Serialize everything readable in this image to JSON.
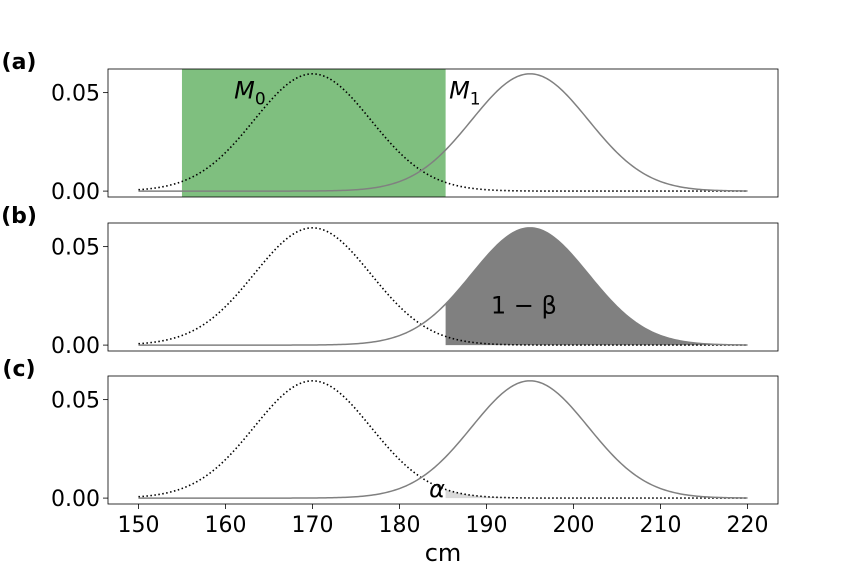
{
  "colors": {
    "null_curve": "#000000",
    "alt_curve": "#808080",
    "acceptance_fill": "#7fbf7f",
    "power_fill": "#808080",
    "alpha_fill": "#d9d9d9"
  },
  "chart_data": [
    {
      "type": "line",
      "panel_label": "(a)",
      "series": [
        {
          "name": "M0",
          "mean": 170,
          "sd": 6.7,
          "style": "dotted",
          "color": "#000000"
        },
        {
          "name": "M1",
          "mean": 195,
          "sd": 6.7,
          "style": "solid",
          "color": "#808080"
        }
      ],
      "x_range": [
        150,
        220
      ],
      "xlim": [
        146.5,
        223.5
      ],
      "ylim": [
        -0.003,
        0.062
      ],
      "yticks": [
        0.0,
        0.05
      ],
      "ytick_labels": [
        "0.00",
        "0.05"
      ],
      "shaded_region": {
        "x": [
          155,
          185.3
        ],
        "color": "#7fbf7f",
        "meaning": "acceptance region"
      },
      "annotations": [
        {
          "base": "M",
          "sub": "0",
          "x": 161,
          "y": 0.049
        },
        {
          "base": "M",
          "sub": "1",
          "x": 185.7,
          "y": 0.049
        }
      ]
    },
    {
      "type": "line",
      "panel_label": "(b)",
      "series": [
        {
          "name": "M0",
          "mean": 170,
          "sd": 6.7,
          "style": "dotted",
          "color": "#000000"
        },
        {
          "name": "M1",
          "mean": 195,
          "sd": 6.7,
          "style": "solid",
          "color": "#808080"
        }
      ],
      "x_range": [
        150,
        220
      ],
      "xlim": [
        146.5,
        223.5
      ],
      "ylim": [
        -0.003,
        0.062
      ],
      "yticks": [
        0.0,
        0.05
      ],
      "ytick_labels": [
        "0.00",
        "0.05"
      ],
      "shaded_under_curve": {
        "curve": "M1",
        "from": 185.3,
        "to": 220,
        "color": "#808080"
      },
      "annotations": [
        {
          "text": "1 − β",
          "x": 190.5,
          "y": 0.02
        }
      ]
    },
    {
      "type": "line",
      "panel_label": "(c)",
      "series": [
        {
          "name": "M0",
          "mean": 170,
          "sd": 6.7,
          "style": "dotted",
          "color": "#000000"
        },
        {
          "name": "M1",
          "mean": 195,
          "sd": 6.7,
          "style": "solid",
          "color": "#808080"
        }
      ],
      "x_range": [
        150,
        220
      ],
      "xlim": [
        146.5,
        223.5
      ],
      "ylim": [
        -0.003,
        0.062
      ],
      "yticks": [
        0.0,
        0.05
      ],
      "ytick_labels": [
        "0.00",
        "0.05"
      ],
      "shaded_under_curve": {
        "curve": "M0",
        "from": 185.3,
        "to": 220,
        "color": "#d9d9d9"
      },
      "annotations": [
        {
          "text": "α",
          "x": 183.4,
          "y": 0.0
        }
      ],
      "xticks": [
        150,
        160,
        170,
        180,
        190,
        200,
        210,
        220
      ],
      "xtick_labels": [
        "150",
        "160",
        "170",
        "180",
        "190",
        "200",
        "210",
        "220"
      ],
      "xlabel": "cm"
    }
  ]
}
